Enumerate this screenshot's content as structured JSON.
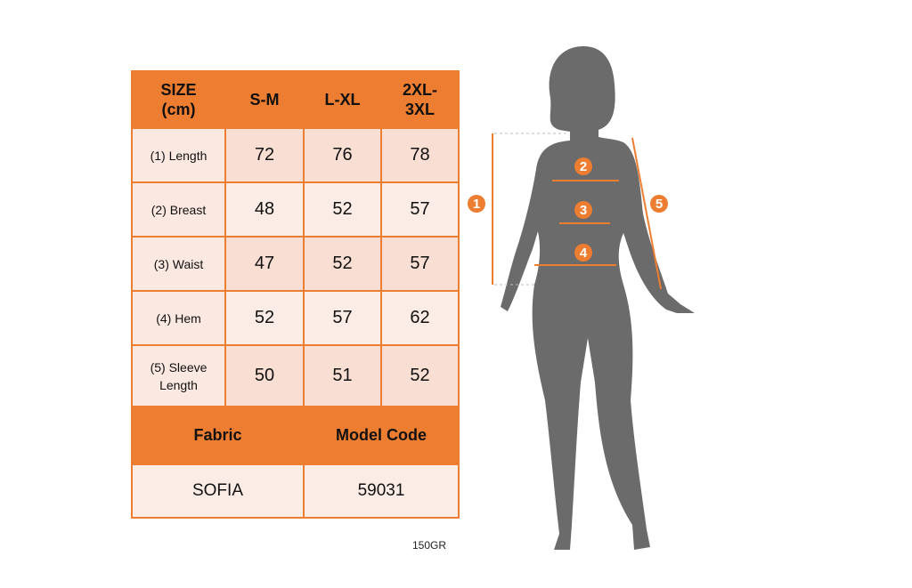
{
  "table": {
    "header": [
      "SIZE (cm)",
      "S-M",
      "L-XL",
      "2XL-3XL"
    ],
    "rows": [
      {
        "label": "(1) Length",
        "values": [
          "72",
          "76",
          "78"
        ]
      },
      {
        "label": "(2) Breast",
        "values": [
          "48",
          "52",
          "57"
        ]
      },
      {
        "label": "(3) Waist",
        "values": [
          "47",
          "52",
          "57"
        ]
      },
      {
        "label": "(4) Hem",
        "values": [
          "52",
          "57",
          "62"
        ]
      },
      {
        "label": "(5) Sleeve Length",
        "values": [
          "50",
          "51",
          "52"
        ]
      }
    ],
    "footer_header": [
      "Fabric",
      "Model Code"
    ],
    "footer_values": [
      "SOFIA",
      "59031"
    ]
  },
  "note": "150GR",
  "figure": {
    "markers": [
      "1",
      "2",
      "3",
      "4",
      "5"
    ],
    "accent": "#ED7D31",
    "silhouette_color": "#6B6B6B"
  }
}
